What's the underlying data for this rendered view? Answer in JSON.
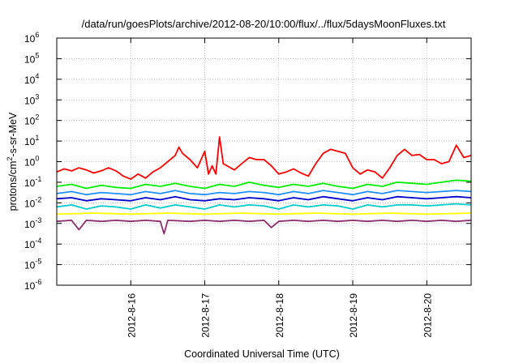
{
  "chart_data": {
    "type": "line",
    "title": "/data/run/goesPlots/archive/2012-08-20/10:00/flux/../flux/5daysMoonFluxes.txt",
    "xlabel": "Coordinated Universal Time (UTC)",
    "ylabel": {
      "base": "protons/cm",
      "sup": "2",
      "rest": "-s-sr-MeV"
    },
    "xlim": [
      15.0,
      20.6
    ],
    "ylim_log10": [
      -6,
      6
    ],
    "scale_y": "log",
    "grid": true,
    "x_ticks": [
      {
        "value": 16,
        "label": "2012-8-16"
      },
      {
        "value": 17,
        "label": "2012-8-17"
      },
      {
        "value": 18,
        "label": "2012-8-18"
      },
      {
        "value": 19,
        "label": "2012-8-19"
      },
      {
        "value": 20,
        "label": "2012-8-20"
      }
    ],
    "y_ticks": [
      {
        "exp": -6,
        "base": "10",
        "sup": "-6"
      },
      {
        "exp": -5,
        "base": "10",
        "sup": "-5"
      },
      {
        "exp": -4,
        "base": "10",
        "sup": "-4"
      },
      {
        "exp": -3,
        "base": "10",
        "sup": "-3"
      },
      {
        "exp": -2,
        "base": "10",
        "sup": "-2"
      },
      {
        "exp": -1,
        "base": "10",
        "sup": "-1"
      },
      {
        "exp": 0,
        "base": "10",
        "sup": "0"
      },
      {
        "exp": 1,
        "base": "10",
        "sup": "1"
      },
      {
        "exp": 2,
        "base": "10",
        "sup": "2"
      },
      {
        "exp": 3,
        "base": "10",
        "sup": "3"
      },
      {
        "exp": 4,
        "base": "10",
        "sup": "4"
      },
      {
        "exp": 5,
        "base": "10",
        "sup": "5"
      },
      {
        "exp": 6,
        "base": "10",
        "sup": "6"
      }
    ],
    "series": [
      {
        "color": "#ff0000",
        "x": [
          15.0,
          15.1,
          15.2,
          15.3,
          15.4,
          15.5,
          15.6,
          15.7,
          15.8,
          15.9,
          16.0,
          16.1,
          16.2,
          16.3,
          16.4,
          16.5,
          16.6,
          16.65,
          16.7,
          16.8,
          16.9,
          17.0,
          17.05,
          17.1,
          17.15,
          17.2,
          17.25,
          17.3,
          17.4,
          17.5,
          17.6,
          17.7,
          17.8,
          17.9,
          18.0,
          18.1,
          18.2,
          18.3,
          18.4,
          18.5,
          18.6,
          18.7,
          18.8,
          18.9,
          19.0,
          19.1,
          19.2,
          19.3,
          19.4,
          19.5,
          19.6,
          19.7,
          19.8,
          19.9,
          20.0,
          20.1,
          20.2,
          20.3,
          20.4,
          20.5,
          20.6
        ],
        "log10": [
          -0.5,
          -0.35,
          -0.45,
          -0.3,
          -0.4,
          -0.55,
          -0.45,
          -0.3,
          -0.45,
          -0.7,
          -0.85,
          -0.6,
          -0.8,
          -0.5,
          -0.3,
          0,
          0.3,
          0.7,
          0.4,
          0.1,
          -0.3,
          0.5,
          -0.6,
          -0.2,
          -0.6,
          1.2,
          -0.1,
          -0.2,
          -0.4,
          -0.1,
          0.2,
          0.1,
          0.1,
          -0.2,
          -0.6,
          -0.5,
          -0.35,
          -0.55,
          -0.7,
          -0.1,
          0.4,
          0.6,
          0.5,
          0.4,
          -0.3,
          -0.6,
          -0.4,
          -0.5,
          -0.8,
          -0.3,
          0.3,
          0.6,
          0.3,
          0.35,
          0.1,
          0.1,
          -0.1,
          0,
          0.8,
          0.2,
          0.3
        ]
      },
      {
        "color": "#00ee00",
        "x": [
          15.0,
          15.2,
          15.4,
          15.6,
          15.8,
          16.0,
          16.2,
          16.4,
          16.6,
          16.8,
          17.0,
          17.2,
          17.4,
          17.6,
          17.8,
          18.0,
          18.2,
          18.4,
          18.6,
          18.8,
          19.0,
          19.2,
          19.4,
          19.6,
          19.8,
          20.0,
          20.2,
          20.4,
          20.6
        ],
        "log10": [
          -1.2,
          -1.1,
          -1.3,
          -1.15,
          -1.25,
          -1.3,
          -1.1,
          -1.2,
          -1.05,
          -1.2,
          -1.3,
          -1.1,
          -1.2,
          -1.0,
          -1.15,
          -1.25,
          -1.1,
          -1.2,
          -1.05,
          -1.2,
          -1.3,
          -1.1,
          -1.2,
          -1.0,
          -1.05,
          -1.1,
          -1.0,
          -0.9,
          -0.95
        ]
      },
      {
        "color": "#1e90ff",
        "x": [
          15.0,
          15.2,
          15.4,
          15.6,
          15.8,
          16.0,
          16.2,
          16.4,
          16.6,
          16.8,
          17.0,
          17.2,
          17.4,
          17.6,
          17.8,
          18.0,
          18.2,
          18.4,
          18.6,
          18.8,
          19.0,
          19.2,
          19.4,
          19.6,
          19.8,
          20.0,
          20.2,
          20.4,
          20.6
        ],
        "log10": [
          -1.55,
          -1.45,
          -1.6,
          -1.5,
          -1.55,
          -1.6,
          -1.45,
          -1.55,
          -1.4,
          -1.55,
          -1.6,
          -1.5,
          -1.55,
          -1.45,
          -1.5,
          -1.6,
          -1.45,
          -1.55,
          -1.4,
          -1.5,
          -1.6,
          -1.45,
          -1.55,
          -1.4,
          -1.45,
          -1.5,
          -1.45,
          -1.4,
          -1.45
        ]
      },
      {
        "color": "#0000cd",
        "x": [
          15.0,
          15.2,
          15.4,
          15.6,
          15.8,
          16.0,
          16.2,
          16.4,
          16.6,
          16.8,
          17.0,
          17.2,
          17.4,
          17.6,
          17.8,
          18.0,
          18.2,
          18.4,
          18.6,
          18.8,
          19.0,
          19.2,
          19.4,
          19.6,
          19.8,
          20.0,
          20.2,
          20.4,
          20.6
        ],
        "log10": [
          -1.8,
          -1.75,
          -1.9,
          -1.8,
          -1.85,
          -1.9,
          -1.75,
          -1.85,
          -1.7,
          -1.85,
          -1.9,
          -1.8,
          -1.85,
          -1.75,
          -1.8,
          -1.9,
          -1.75,
          -1.85,
          -1.7,
          -1.8,
          -1.9,
          -1.75,
          -1.85,
          -1.7,
          -1.75,
          -1.8,
          -1.75,
          -1.7,
          -1.75
        ]
      },
      {
        "color": "#00cccc",
        "x": [
          15.0,
          15.2,
          15.4,
          15.6,
          15.8,
          16.0,
          16.2,
          16.4,
          16.6,
          16.8,
          17.0,
          17.2,
          17.4,
          17.6,
          17.8,
          18.0,
          18.2,
          18.4,
          18.6,
          18.8,
          19.0,
          19.2,
          19.4,
          19.6,
          19.8,
          20.0,
          20.2,
          20.4,
          20.6
        ],
        "log10": [
          -2.2,
          -2.1,
          -2.3,
          -2.15,
          -2.2,
          -2.3,
          -2.1,
          -2.25,
          -2.1,
          -2.2,
          -2.3,
          -2.1,
          -2.2,
          -2.1,
          -2.15,
          -2.3,
          -2.1,
          -2.2,
          -2.1,
          -2.15,
          -2.3,
          -2.1,
          -2.2,
          -2.1,
          -2.1,
          -2.15,
          -2.1,
          -2.05,
          -2.1
        ]
      },
      {
        "color": "#ffff00",
        "x": [
          15.0,
          15.5,
          16.0,
          16.5,
          17.0,
          17.5,
          18.0,
          18.5,
          19.0,
          19.5,
          20.0,
          20.6
        ],
        "log10": [
          -2.55,
          -2.5,
          -2.55,
          -2.5,
          -2.55,
          -2.5,
          -2.55,
          -2.5,
          -2.55,
          -2.5,
          -2.55,
          -2.5
        ]
      },
      {
        "color": "#8b2e6e",
        "x": [
          15.0,
          15.2,
          15.3,
          15.4,
          15.6,
          15.8,
          16.0,
          16.2,
          16.4,
          16.45,
          16.5,
          16.8,
          17.0,
          17.2,
          17.4,
          17.6,
          17.8,
          17.9,
          18.0,
          18.2,
          18.4,
          18.6,
          18.8,
          19.0,
          19.2,
          19.4,
          19.6,
          19.8,
          20.0,
          20.2,
          20.4,
          20.6
        ],
        "log10": [
          -2.9,
          -2.85,
          -3.3,
          -2.85,
          -2.9,
          -2.85,
          -2.9,
          -2.85,
          -2.9,
          -3.5,
          -2.85,
          -2.9,
          -2.85,
          -2.9,
          -2.85,
          -2.9,
          -2.85,
          -3.2,
          -2.9,
          -2.85,
          -2.9,
          -2.85,
          -2.9,
          -2.85,
          -2.9,
          -2.85,
          -2.9,
          -2.85,
          -2.9,
          -2.85,
          -2.9,
          -2.85
        ]
      }
    ]
  }
}
